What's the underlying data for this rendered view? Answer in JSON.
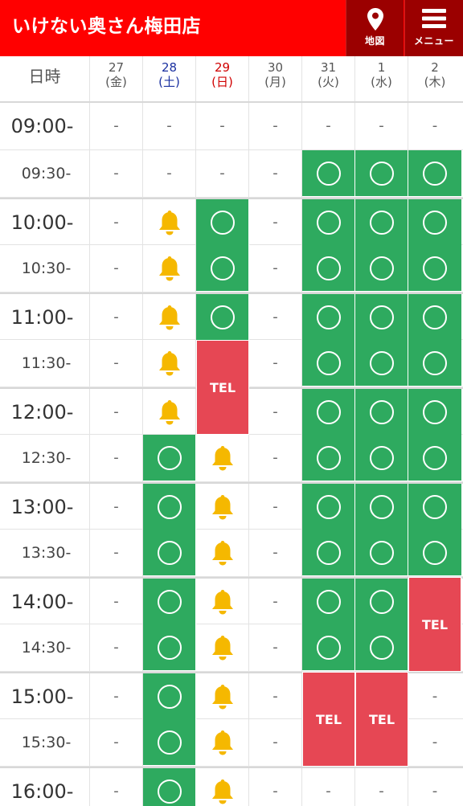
{
  "header": {
    "shop_name": "いけない奥さん梅田店",
    "map_label": "地図",
    "menu_label": "メニュー",
    "map_icon": "map-pin-icon",
    "menu_icon": "hamburger-menu-icon"
  },
  "colors": {
    "header_bg": "#ff0000",
    "header_btn_bg": "#9b0000",
    "available_green": "#2eaa5f",
    "tel_red": "#e64754",
    "bell_yellow": "#f5b800",
    "saturday_blue": "#1a30a0",
    "sunday_red": "#d00000"
  },
  "schedule": {
    "corner_label": "日時",
    "days": [
      {
        "date": "27",
        "weekday": "(金)",
        "type": "weekday"
      },
      {
        "date": "28",
        "weekday": "(土)",
        "type": "saturday"
      },
      {
        "date": "29",
        "weekday": "(日)",
        "type": "sunday"
      },
      {
        "date": "30",
        "weekday": "(月)",
        "type": "weekday"
      },
      {
        "date": "31",
        "weekday": "(火)",
        "type": "weekday"
      },
      {
        "date": "1",
        "weekday": "(水)",
        "type": "weekday"
      },
      {
        "date": "2",
        "weekday": "(木)",
        "type": "weekday"
      }
    ],
    "dash": "-",
    "tel_label": "TEL",
    "status_legend": {
      "dash": "unavailable",
      "bell": "waitlist/notify (bell-icon)",
      "circle": "available (circle-icon)",
      "tel": "call to book"
    },
    "slots": [
      {
        "time": "09:00-",
        "hour_start": true,
        "cells": [
          "dash",
          "dash",
          "dash",
          "dash",
          "dash",
          "dash",
          "dash"
        ]
      },
      {
        "time": "09:30-",
        "hour_start": false,
        "cells": [
          "dash",
          "dash",
          "dash",
          "dash",
          "circle",
          "circle",
          "circle"
        ]
      },
      {
        "time": "10:00-",
        "hour_start": true,
        "cells": [
          "dash",
          "bell",
          "circle",
          "dash",
          "circle",
          "circle",
          "circle"
        ]
      },
      {
        "time": "10:30-",
        "hour_start": false,
        "cells": [
          "dash",
          "bell",
          "circle",
          "dash",
          "circle",
          "circle",
          "circle"
        ]
      },
      {
        "time": "11:00-",
        "hour_start": true,
        "cells": [
          "dash",
          "bell",
          "circle",
          "dash",
          "circle",
          "circle",
          "circle"
        ]
      },
      {
        "time": "11:30-",
        "hour_start": false,
        "cells": [
          "dash",
          "bell",
          "tel",
          "dash",
          "circle",
          "circle",
          "circle"
        ]
      },
      {
        "time": "12:00-",
        "hour_start": true,
        "cells": [
          "dash",
          "bell",
          "tel",
          "dash",
          "circle",
          "circle",
          "circle"
        ]
      },
      {
        "time": "12:30-",
        "hour_start": false,
        "cells": [
          "dash",
          "circle",
          "bell",
          "dash",
          "circle",
          "circle",
          "circle"
        ]
      },
      {
        "time": "13:00-",
        "hour_start": true,
        "cells": [
          "dash",
          "circle",
          "bell",
          "dash",
          "circle",
          "circle",
          "circle"
        ]
      },
      {
        "time": "13:30-",
        "hour_start": false,
        "cells": [
          "dash",
          "circle",
          "bell",
          "dash",
          "circle",
          "circle",
          "circle"
        ]
      },
      {
        "time": "14:00-",
        "hour_start": true,
        "cells": [
          "dash",
          "circle",
          "bell",
          "dash",
          "circle",
          "circle",
          "tel"
        ]
      },
      {
        "time": "14:30-",
        "hour_start": false,
        "cells": [
          "dash",
          "circle",
          "bell",
          "dash",
          "circle",
          "circle",
          "tel"
        ]
      },
      {
        "time": "15:00-",
        "hour_start": true,
        "cells": [
          "dash",
          "circle",
          "bell",
          "dash",
          "tel",
          "tel",
          "dash"
        ]
      },
      {
        "time": "15:30-",
        "hour_start": false,
        "cells": [
          "dash",
          "circle",
          "bell",
          "dash",
          "tel",
          "tel",
          "dash"
        ]
      },
      {
        "time": "16:00-",
        "hour_start": true,
        "cells": [
          "dash",
          "circle",
          "bell",
          "dash",
          "dash",
          "dash",
          "dash"
        ]
      }
    ]
  }
}
